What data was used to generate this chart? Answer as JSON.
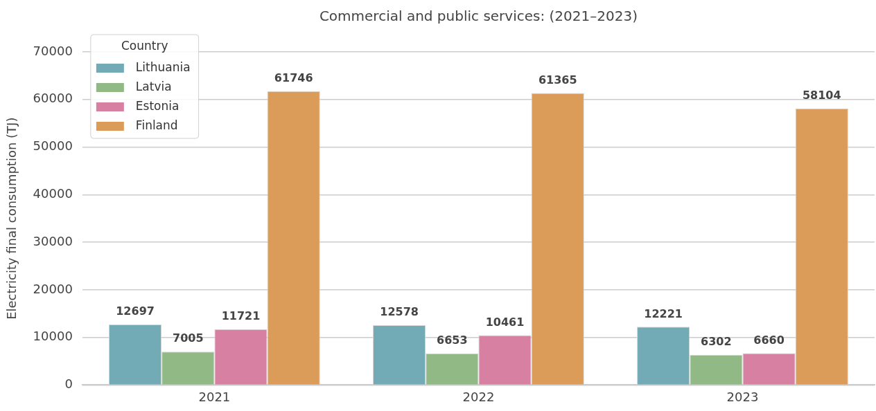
{
  "chart_data": {
    "type": "bar",
    "title": "Commercial and public services: (2021–2023)",
    "ylabel": "Electricity final consumption (TJ)",
    "legend_title": "Country",
    "categories": [
      "2021",
      "2022",
      "2023"
    ],
    "series": [
      {
        "name": "Lithuania",
        "color": "#72abb6",
        "values": [
          12697,
          12578,
          12221
        ]
      },
      {
        "name": "Latvia",
        "color": "#90b986",
        "values": [
          7005,
          6653,
          6302
        ]
      },
      {
        "name": "Estonia",
        "color": "#d780a2",
        "values": [
          11721,
          10461,
          6660
        ]
      },
      {
        "name": "Finland",
        "color": "#db9c5a",
        "values": [
          61746,
          61365,
          58104
        ]
      }
    ],
    "ylim": [
      0,
      70000
    ],
    "yticks": [
      0,
      10000,
      20000,
      30000,
      40000,
      50000,
      60000,
      70000
    ],
    "grid": "y",
    "legend": "top left",
    "data_labels": true
  }
}
